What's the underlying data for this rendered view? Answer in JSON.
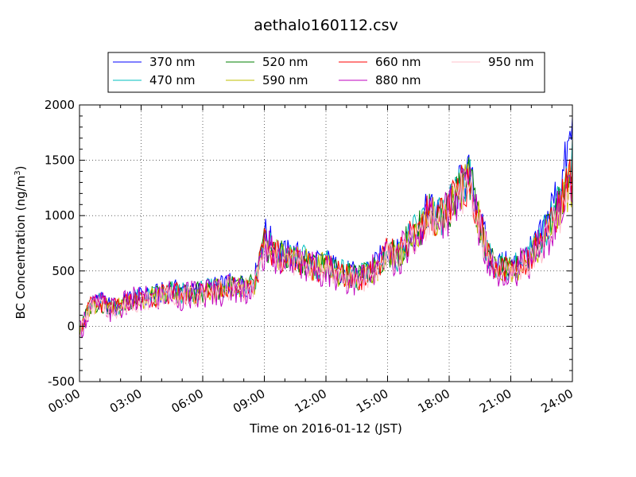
{
  "chart_data": {
    "type": "line",
    "title": "aethalo160112.csv",
    "xlabel": "Time on 2016-01-12 (JST)",
    "ylabel": "BC Concentration (ng/m",
    "ylabel_sup": "3",
    "ylabel_tail": ")",
    "xlim": [
      "00:00",
      "24:00"
    ],
    "ylim": [
      -500,
      2000
    ],
    "yticks": [
      -500,
      0,
      500,
      1000,
      1500,
      2000
    ],
    "xticks": [
      "00:00",
      "03:00",
      "06:00",
      "09:00",
      "12:00",
      "15:00",
      "18:00",
      "21:00",
      "24:00"
    ],
    "grid": true,
    "legend_position": "top-center",
    "x_hours": [
      0,
      0.5,
      1,
      1.5,
      2,
      2.5,
      3,
      3.5,
      4,
      4.5,
      5,
      5.5,
      6,
      6.5,
      7,
      7.5,
      8,
      8.5,
      9,
      9.5,
      10,
      10.5,
      11,
      11.5,
      12,
      12.5,
      13,
      13.5,
      14,
      14.5,
      15,
      15.5,
      16,
      16.5,
      17,
      17.5,
      18,
      18.5,
      19,
      19.5,
      20,
      20.5,
      21,
      21.5,
      22,
      22.5,
      23,
      23.5,
      24
    ],
    "series": [
      {
        "name": "370 nm",
        "color": "#0000ff",
        "values": [
          -50,
          200,
          230,
          180,
          200,
          250,
          260,
          280,
          300,
          330,
          310,
          300,
          330,
          350,
          360,
          380,
          370,
          390,
          850,
          700,
          650,
          640,
          620,
          560,
          590,
          520,
          490,
          460,
          500,
          560,
          710,
          650,
          820,
          890,
          1060,
          1000,
          1090,
          1260,
          1360,
          950,
          620,
          560,
          550,
          590,
          680,
          830,
          1100,
          1320,
          1770
        ]
      },
      {
        "name": "470 nm",
        "color": "#00bfbf",
        "values": [
          -50,
          190,
          220,
          170,
          190,
          240,
          250,
          270,
          290,
          320,
          300,
          290,
          320,
          340,
          350,
          370,
          360,
          380,
          770,
          680,
          630,
          620,
          600,
          540,
          570,
          500,
          470,
          440,
          480,
          540,
          690,
          630,
          800,
          870,
          1040,
          980,
          1070,
          1230,
          1330,
          930,
          600,
          540,
          530,
          570,
          660,
          790,
          1020,
          1250,
          1500
        ]
      },
      {
        "name": "520 nm",
        "color": "#007f00",
        "values": [
          -50,
          185,
          215,
          165,
          185,
          235,
          245,
          265,
          285,
          315,
          295,
          285,
          315,
          335,
          345,
          365,
          355,
          375,
          740,
          670,
          620,
          610,
          590,
          530,
          560,
          490,
          460,
          430,
          470,
          530,
          680,
          620,
          790,
          860,
          1030,
          970,
          1060,
          1220,
          1320,
          920,
          590,
          530,
          520,
          560,
          650,
          760,
          940,
          1150,
          1350
        ]
      },
      {
        "name": "590 nm",
        "color": "#bfbf00",
        "values": [
          -50,
          180,
          210,
          160,
          180,
          230,
          240,
          260,
          280,
          310,
          290,
          280,
          310,
          330,
          340,
          360,
          350,
          370,
          720,
          660,
          610,
          600,
          580,
          520,
          550,
          480,
          450,
          420,
          460,
          520,
          670,
          610,
          780,
          850,
          1020,
          960,
          1050,
          1210,
          1310,
          910,
          580,
          520,
          510,
          550,
          640,
          740,
          900,
          1110,
          1320
        ]
      },
      {
        "name": "660 nm",
        "color": "#ff0000",
        "values": [
          -50,
          180,
          210,
          160,
          180,
          230,
          240,
          260,
          280,
          310,
          290,
          280,
          310,
          330,
          340,
          360,
          350,
          370,
          730,
          660,
          610,
          600,
          580,
          520,
          550,
          480,
          450,
          420,
          460,
          520,
          690,
          610,
          790,
          860,
          1040,
          970,
          1070,
          1230,
          1330,
          930,
          590,
          530,
          520,
          560,
          650,
          800,
          920,
          1180,
          1380
        ]
      },
      {
        "name": "880 nm",
        "color": "#bf00bf",
        "values": [
          -50,
          170,
          200,
          150,
          170,
          220,
          230,
          250,
          270,
          300,
          280,
          270,
          300,
          320,
          330,
          350,
          340,
          360,
          700,
          650,
          600,
          590,
          570,
          510,
          540,
          470,
          440,
          410,
          450,
          510,
          660,
          600,
          770,
          840,
          1010,
          950,
          1040,
          1200,
          1300,
          900,
          570,
          510,
          500,
          540,
          630,
          730,
          880,
          1090,
          1300
        ]
      },
      {
        "name": "950 nm",
        "color": "#ffc0cb",
        "values": [
          -50,
          160,
          190,
          140,
          160,
          210,
          220,
          240,
          260,
          290,
          270,
          260,
          290,
          310,
          320,
          340,
          330,
          350,
          680,
          640,
          590,
          580,
          560,
          500,
          530,
          460,
          430,
          400,
          440,
          500,
          640,
          590,
          750,
          820,
          990,
          930,
          1020,
          1180,
          1280,
          880,
          560,
          500,
          490,
          530,
          620,
          710,
          860,
          1060,
          1270
        ]
      }
    ]
  }
}
